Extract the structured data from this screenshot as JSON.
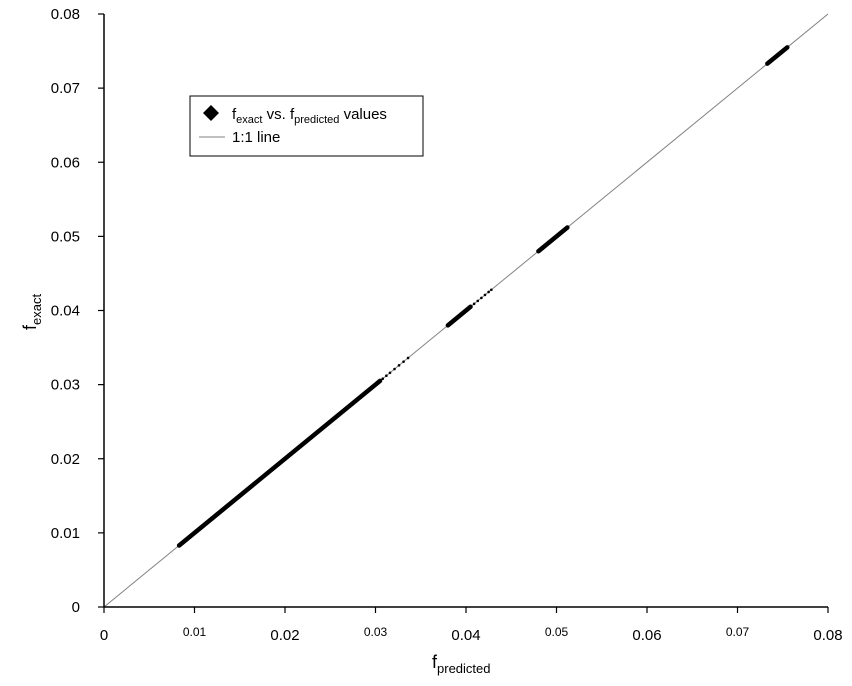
{
  "chart_data": {
    "type": "scatter",
    "title": "",
    "xlabel": {
      "main": "f",
      "sub": "predicted"
    },
    "ylabel": {
      "main": "f",
      "sub": "exact"
    },
    "xlim": [
      0,
      0.08
    ],
    "ylim": [
      0,
      0.08
    ],
    "x_ticks": [
      "0",
      "0.01",
      "0.02",
      "0.03",
      "0.04",
      "0.05",
      "0.06",
      "0.07",
      "0.08"
    ],
    "y_ticks": [
      "0",
      "0.01",
      "0.02",
      "0.03",
      "0.04",
      "0.05",
      "0.06",
      "0.07",
      "0.08"
    ],
    "grid": false,
    "legend": {
      "placement": "top-left",
      "entries": [
        {
          "marker": "diamond",
          "prefix": "f",
          "sub1": "exact",
          "middle": " vs. f",
          "sub2": "predicted",
          "suffix": " values"
        },
        {
          "marker": "line",
          "text": "1:1 line"
        }
      ]
    },
    "series": [
      {
        "name": "fexact vs. fpredicted values",
        "segments": [
          [
            0.0083,
            0.0305
          ],
          [
            0.038,
            0.0405
          ],
          [
            0.048,
            0.0512
          ],
          [
            0.0733,
            0.0755
          ]
        ],
        "points": [
          [
            0.0308,
            0.0308
          ],
          [
            0.0312,
            0.0312
          ],
          [
            0.0316,
            0.0316
          ],
          [
            0.0321,
            0.0321
          ],
          [
            0.0326,
            0.0326
          ],
          [
            0.0331,
            0.0331
          ],
          [
            0.0336,
            0.0336
          ],
          [
            0.0409,
            0.0409
          ],
          [
            0.0413,
            0.0413
          ],
          [
            0.0417,
            0.0417
          ],
          [
            0.0421,
            0.0421
          ],
          [
            0.0425,
            0.0425
          ],
          [
            0.0428,
            0.0428
          ]
        ]
      },
      {
        "name": "1:1 line",
        "x": [
          0,
          0.08
        ],
        "y": [
          0,
          0.08
        ]
      }
    ],
    "colors": {
      "points": "#000000",
      "identity_line": "#808080",
      "axes": "#000000"
    }
  }
}
